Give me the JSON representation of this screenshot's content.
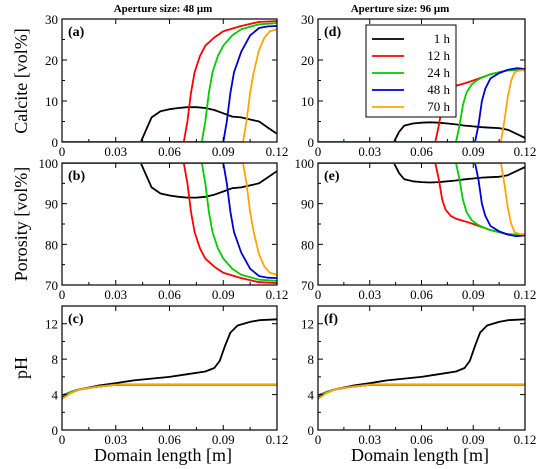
{
  "figure": {
    "column_titles": [
      "Aperture size: 48 μm",
      "Aperture size: 96 μm"
    ],
    "row_ylabels": [
      "Calcite [vol%]",
      "Porosity [vol%]",
      "pH"
    ],
    "xlabel": "Domain length [m]"
  },
  "colors": {
    "1 h": "#000000",
    "12 h": "#ff0000",
    "24 h": "#00cc00",
    "48 h": "#0000cc",
    "70 h": "#ffa500"
  },
  "chart_data": [
    {
      "panel": "(a)",
      "type": "line",
      "xlim": [
        0,
        0.12
      ],
      "ylim": [
        0,
        30
      ],
      "xticks": [
        0,
        0.03,
        0.06,
        0.09,
        0.12
      ],
      "yticks": [
        0,
        10,
        20,
        30
      ],
      "series": [
        {
          "name": "1 h",
          "x": [
            0,
            0.044,
            0.047,
            0.05,
            0.055,
            0.06,
            0.065,
            0.07,
            0.075,
            0.08,
            0.085,
            0.09,
            0.095,
            0.1,
            0.105,
            0.11,
            0.115,
            0.12
          ],
          "y": [
            0,
            0,
            3,
            6,
            7.5,
            8,
            8.3,
            8.5,
            8.5,
            8.3,
            7.8,
            7,
            6.2,
            6,
            5.5,
            5,
            3.5,
            2
          ]
        },
        {
          "name": "12 h",
          "x": [
            0,
            0.068,
            0.07,
            0.072,
            0.074,
            0.077,
            0.08,
            0.085,
            0.09,
            0.1,
            0.11,
            0.12
          ],
          "y": [
            0,
            0,
            5,
            12,
            17,
            21,
            23.5,
            25.5,
            27,
            28.3,
            29.3,
            29.5
          ]
        },
        {
          "name": "24 h",
          "x": [
            0,
            0.078,
            0.08,
            0.082,
            0.084,
            0.087,
            0.09,
            0.095,
            0.1,
            0.11,
            0.12
          ],
          "y": [
            0,
            0,
            5,
            12,
            17,
            21,
            23.5,
            26,
            27.5,
            28.7,
            29
          ]
        },
        {
          "name": "48 h",
          "x": [
            0,
            0.09,
            0.092,
            0.094,
            0.096,
            0.1,
            0.105,
            0.11,
            0.115,
            0.12
          ],
          "y": [
            0,
            0,
            5,
            12,
            17,
            22,
            26,
            27.8,
            28.2,
            28.3
          ]
        },
        {
          "name": "70 h",
          "x": [
            0,
            0.101,
            0.103,
            0.105,
            0.107,
            0.11,
            0.113,
            0.116,
            0.12
          ],
          "y": [
            0,
            0,
            5,
            12,
            17,
            22.5,
            25.5,
            27,
            27.5
          ]
        }
      ]
    },
    {
      "panel": "(b)",
      "type": "line",
      "xlim": [
        0,
        0.12
      ],
      "ylim": [
        70,
        100
      ],
      "xticks": [
        0,
        0.03,
        0.06,
        0.09,
        0.12
      ],
      "yticks": [
        70,
        80,
        90,
        100
      ],
      "series": [
        {
          "name": "1 h",
          "x": [
            0,
            0.044,
            0.047,
            0.05,
            0.055,
            0.06,
            0.065,
            0.07,
            0.075,
            0.08,
            0.085,
            0.09,
            0.095,
            0.1,
            0.105,
            0.11,
            0.115,
            0.12
          ],
          "y": [
            100,
            100,
            97,
            94,
            92.5,
            92,
            91.7,
            91.5,
            91.5,
            91.7,
            92.2,
            93,
            93.8,
            94,
            94.5,
            95,
            96.5,
            98
          ]
        },
        {
          "name": "12 h",
          "x": [
            0,
            0.068,
            0.07,
            0.072,
            0.074,
            0.077,
            0.08,
            0.085,
            0.09,
            0.1,
            0.11,
            0.12
          ],
          "y": [
            100,
            100,
            95,
            88,
            83,
            79,
            76.5,
            74.5,
            73,
            71.7,
            70.7,
            70.5
          ]
        },
        {
          "name": "24 h",
          "x": [
            0,
            0.078,
            0.08,
            0.082,
            0.084,
            0.087,
            0.09,
            0.095,
            0.1,
            0.11,
            0.12
          ],
          "y": [
            100,
            100,
            95,
            88,
            83,
            79,
            76.5,
            74,
            72.5,
            71.3,
            71
          ]
        },
        {
          "name": "48 h",
          "x": [
            0,
            0.09,
            0.092,
            0.094,
            0.096,
            0.1,
            0.105,
            0.11,
            0.115,
            0.12
          ],
          "y": [
            100,
            100,
            95,
            88,
            83,
            78,
            74,
            72.2,
            71.8,
            71.7
          ]
        },
        {
          "name": "70 h",
          "x": [
            0,
            0.101,
            0.103,
            0.105,
            0.107,
            0.11,
            0.113,
            0.116,
            0.12
          ],
          "y": [
            100,
            100,
            95,
            88,
            83,
            77.5,
            74.5,
            73,
            72.5
          ]
        }
      ]
    },
    {
      "panel": "(c)",
      "type": "line",
      "xlim": [
        0,
        0.12
      ],
      "ylim": [
        0,
        14
      ],
      "xticks": [
        0,
        0.03,
        0.06,
        0.09,
        0.12
      ],
      "yticks": [
        0,
        4,
        8,
        12
      ],
      "series": [
        {
          "name": "1 h",
          "x": [
            0,
            0.005,
            0.01,
            0.02,
            0.03,
            0.04,
            0.05,
            0.06,
            0.07,
            0.08,
            0.085,
            0.088,
            0.091,
            0.094,
            0.098,
            0.105,
            0.11,
            0.12
          ],
          "y": [
            3.9,
            4.3,
            4.6,
            5,
            5.3,
            5.6,
            5.8,
            6.0,
            6.3,
            6.6,
            7.0,
            7.8,
            9.5,
            11,
            11.8,
            12.2,
            12.4,
            12.5
          ]
        },
        {
          "name": "12 h",
          "x": [
            0,
            0.005,
            0.01,
            0.02,
            0.03,
            0.12
          ],
          "y": [
            3.8,
            4.3,
            4.6,
            4.9,
            5.1,
            5.1
          ]
        },
        {
          "name": "24 h",
          "x": [
            0,
            0.005,
            0.01,
            0.02,
            0.03,
            0.12
          ],
          "y": [
            3.8,
            4.3,
            4.6,
            4.9,
            5.1,
            5.1
          ]
        },
        {
          "name": "48 h",
          "x": [
            0,
            0.005,
            0.01,
            0.02,
            0.03,
            0.12
          ],
          "y": [
            3.6,
            4.2,
            4.6,
            4.9,
            5.1,
            5.1
          ]
        },
        {
          "name": "70 h",
          "x": [
            0,
            0.005,
            0.01,
            0.02,
            0.03,
            0.12
          ],
          "y": [
            3.5,
            4.2,
            4.6,
            4.9,
            5.1,
            5.1
          ]
        }
      ]
    },
    {
      "panel": "(d)",
      "type": "line",
      "xlim": [
        0,
        0.12
      ],
      "ylim": [
        0,
        30
      ],
      "xticks": [
        0,
        0.03,
        0.06,
        0.09,
        0.12
      ],
      "yticks": [
        0,
        10,
        20,
        30
      ],
      "legend_position": "top-left",
      "series": [
        {
          "name": "1 h",
          "x": [
            0,
            0.044,
            0.047,
            0.05,
            0.055,
            0.06,
            0.065,
            0.07,
            0.075,
            0.08,
            0.085,
            0.09,
            0.095,
            0.1,
            0.105,
            0.11,
            0.115,
            0.12
          ],
          "y": [
            0,
            0,
            2.5,
            4,
            4.5,
            4.7,
            4.8,
            4.7,
            4.5,
            4.3,
            4.0,
            3.8,
            3.6,
            3.5,
            3.4,
            3.0,
            2.0,
            1.0
          ]
        },
        {
          "name": "12 h",
          "x": [
            0,
            0.068,
            0.07,
            0.072,
            0.074,
            0.077,
            0.08,
            0.085,
            0.09,
            0.1,
            0.11,
            0.12
          ],
          "y": [
            0,
            0,
            4,
            9,
            11.5,
            13,
            13.7,
            14.3,
            15,
            16.5,
            17.5,
            17.7
          ]
        },
        {
          "name": "24 h",
          "x": [
            0,
            0.08,
            0.082,
            0.084,
            0.086,
            0.089,
            0.092,
            0.095,
            0.1,
            0.11,
            0.12
          ],
          "y": [
            0,
            0,
            4,
            9,
            12,
            14,
            15,
            15.7,
            16.5,
            17.5,
            17.7
          ]
        },
        {
          "name": "48 h",
          "x": [
            0,
            0.091,
            0.093,
            0.095,
            0.097,
            0.1,
            0.105,
            0.11,
            0.115,
            0.12
          ],
          "y": [
            0,
            0,
            4,
            10,
            13,
            15.5,
            16.8,
            17.6,
            18,
            17.8
          ]
        },
        {
          "name": "70 h",
          "x": [
            0,
            0.106,
            0.108,
            0.11,
            0.112,
            0.114,
            0.117,
            0.12
          ],
          "y": [
            0,
            0,
            5,
            11,
            15,
            17,
            17.5,
            17.5
          ]
        }
      ]
    },
    {
      "panel": "(e)",
      "type": "line",
      "xlim": [
        0,
        0.12
      ],
      "ylim": [
        70,
        100
      ],
      "xticks": [
        0,
        0.03,
        0.06,
        0.09,
        0.12
      ],
      "yticks": [
        70,
        80,
        90,
        100
      ],
      "series": [
        {
          "name": "1 h",
          "x": [
            0,
            0.044,
            0.047,
            0.05,
            0.055,
            0.06,
            0.065,
            0.07,
            0.075,
            0.08,
            0.085,
            0.09,
            0.095,
            0.1,
            0.105,
            0.11,
            0.115,
            0.12
          ],
          "y": [
            100,
            100,
            97.5,
            96,
            95.5,
            95.3,
            95.2,
            95.3,
            95.5,
            95.7,
            96,
            96.2,
            96.4,
            96.5,
            96.6,
            97,
            98,
            99
          ]
        },
        {
          "name": "12 h",
          "x": [
            0,
            0.068,
            0.07,
            0.072,
            0.074,
            0.077,
            0.08,
            0.085,
            0.09,
            0.1,
            0.11,
            0.12
          ],
          "y": [
            100,
            100,
            96,
            91,
            88.5,
            87,
            86.3,
            85.7,
            85,
            83.5,
            82.5,
            82.3
          ]
        },
        {
          "name": "24 h",
          "x": [
            0,
            0.08,
            0.082,
            0.084,
            0.086,
            0.089,
            0.092,
            0.095,
            0.1,
            0.11,
            0.12
          ],
          "y": [
            100,
            100,
            96,
            91,
            88,
            86,
            85,
            84.3,
            83.5,
            82.5,
            82.3
          ]
        },
        {
          "name": "48 h",
          "x": [
            0,
            0.091,
            0.093,
            0.095,
            0.097,
            0.1,
            0.105,
            0.11,
            0.115,
            0.12
          ],
          "y": [
            100,
            100,
            96,
            90,
            87,
            84.5,
            83.2,
            82.4,
            82,
            82.2
          ]
        },
        {
          "name": "70 h",
          "x": [
            0,
            0.106,
            0.108,
            0.11,
            0.112,
            0.114,
            0.117,
            0.12
          ],
          "y": [
            100,
            100,
            95,
            89,
            85,
            83,
            82.5,
            82.5
          ]
        }
      ]
    },
    {
      "panel": "(f)",
      "type": "line",
      "xlim": [
        0,
        0.12
      ],
      "ylim": [
        0,
        14
      ],
      "xticks": [
        0,
        0.03,
        0.06,
        0.09,
        0.12
      ],
      "yticks": [
        0,
        4,
        8,
        12
      ],
      "series": [
        {
          "name": "1 h",
          "x": [
            0,
            0.005,
            0.01,
            0.02,
            0.03,
            0.04,
            0.05,
            0.06,
            0.07,
            0.08,
            0.085,
            0.088,
            0.091,
            0.094,
            0.098,
            0.105,
            0.11,
            0.12
          ],
          "y": [
            3.9,
            4.3,
            4.6,
            5,
            5.3,
            5.6,
            5.8,
            6.0,
            6.3,
            6.6,
            7.0,
            7.8,
            9.5,
            11,
            11.8,
            12.2,
            12.4,
            12.5
          ]
        },
        {
          "name": "12 h",
          "x": [
            0,
            0.005,
            0.01,
            0.02,
            0.03,
            0.12
          ],
          "y": [
            3.8,
            4.3,
            4.6,
            4.9,
            5.1,
            5.1
          ]
        },
        {
          "name": "24 h",
          "x": [
            0,
            0.005,
            0.01,
            0.02,
            0.03,
            0.12
          ],
          "y": [
            3.8,
            4.3,
            4.6,
            4.9,
            5.1,
            5.1
          ]
        },
        {
          "name": "48 h",
          "x": [
            0,
            0.005,
            0.01,
            0.02,
            0.03,
            0.12
          ],
          "y": [
            3.6,
            4.2,
            4.6,
            4.9,
            5.1,
            5.1
          ]
        },
        {
          "name": "70 h",
          "x": [
            0,
            0.005,
            0.01,
            0.02,
            0.03,
            0.12
          ],
          "y": [
            3.5,
            4.2,
            4.6,
            4.9,
            5.1,
            5.1
          ]
        }
      ]
    }
  ]
}
